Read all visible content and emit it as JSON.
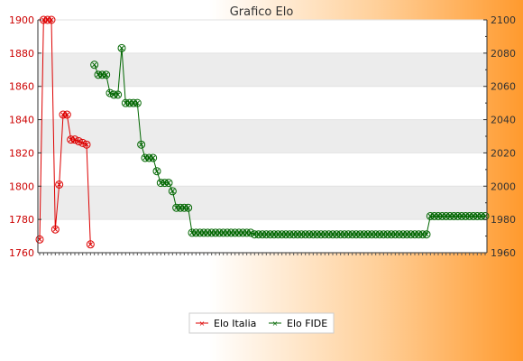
{
  "chart_data": {
    "type": "line",
    "title": "Grafico Elo",
    "y_left": {
      "min": 1760,
      "max": 1900,
      "ticks": [
        1760,
        1780,
        1800,
        1820,
        1840,
        1860,
        1880,
        1900
      ]
    },
    "y_right": {
      "min": 1960,
      "max": 2100,
      "ticks": [
        1960,
        1980,
        2000,
        2020,
        2040,
        2060,
        2080,
        2100
      ]
    },
    "x_count": 115,
    "grid": "horizontal bands",
    "legend_position": "bottom",
    "colors": {
      "italia": "#dd0000",
      "fide": "#006600",
      "band": "#ececec"
    },
    "series": [
      {
        "name": "Elo Italia",
        "axis": "left",
        "points": [
          [
            0,
            1768
          ],
          [
            1,
            1900
          ],
          [
            2,
            1900
          ],
          [
            3,
            1900
          ],
          [
            4,
            1774
          ],
          [
            5,
            1801
          ],
          [
            6,
            1843
          ],
          [
            7,
            1843
          ],
          [
            8,
            1828
          ],
          [
            9,
            1828
          ],
          [
            10,
            1827
          ],
          [
            11,
            1826
          ],
          [
            12,
            1825
          ],
          [
            13,
            1765
          ]
        ]
      },
      {
        "name": "Elo FIDE",
        "axis": "right",
        "points": [
          [
            14,
            2073
          ],
          [
            15,
            2067
          ],
          [
            16,
            2067
          ],
          [
            17,
            2067
          ],
          [
            18,
            2056
          ],
          [
            19,
            2055
          ],
          [
            20,
            2055
          ],
          [
            21,
            2083
          ],
          [
            22,
            2050
          ],
          [
            23,
            2050
          ],
          [
            24,
            2050
          ],
          [
            25,
            2050
          ],
          [
            26,
            2025
          ],
          [
            27,
            2017
          ],
          [
            28,
            2017
          ],
          [
            29,
            2017
          ],
          [
            30,
            2009
          ],
          [
            31,
            2002
          ],
          [
            32,
            2002
          ],
          [
            33,
            2002
          ],
          [
            34,
            1997
          ],
          [
            35,
            1987
          ],
          [
            36,
            1987
          ],
          [
            37,
            1987
          ],
          [
            38,
            1987
          ],
          [
            39,
            1972
          ],
          [
            40,
            1972
          ],
          [
            41,
            1972
          ],
          [
            42,
            1972
          ],
          [
            43,
            1972
          ],
          [
            44,
            1972
          ],
          [
            45,
            1972
          ],
          [
            46,
            1972
          ],
          [
            47,
            1972
          ],
          [
            48,
            1972
          ],
          [
            49,
            1972
          ],
          [
            50,
            1972
          ],
          [
            51,
            1972
          ],
          [
            52,
            1972
          ],
          [
            53,
            1972
          ],
          [
            54,
            1972
          ],
          [
            55,
            1971
          ],
          [
            56,
            1971
          ],
          [
            57,
            1971
          ],
          [
            58,
            1971
          ],
          [
            59,
            1971
          ],
          [
            60,
            1971
          ],
          [
            61,
            1971
          ],
          [
            62,
            1971
          ],
          [
            63,
            1971
          ],
          [
            64,
            1971
          ],
          [
            65,
            1971
          ],
          [
            66,
            1971
          ],
          [
            67,
            1971
          ],
          [
            68,
            1971
          ],
          [
            69,
            1971
          ],
          [
            70,
            1971
          ],
          [
            71,
            1971
          ],
          [
            72,
            1971
          ],
          [
            73,
            1971
          ],
          [
            74,
            1971
          ],
          [
            75,
            1971
          ],
          [
            76,
            1971
          ],
          [
            77,
            1971
          ],
          [
            78,
            1971
          ],
          [
            79,
            1971
          ],
          [
            80,
            1971
          ],
          [
            81,
            1971
          ],
          [
            82,
            1971
          ],
          [
            83,
            1971
          ],
          [
            84,
            1971
          ],
          [
            85,
            1971
          ],
          [
            86,
            1971
          ],
          [
            87,
            1971
          ],
          [
            88,
            1971
          ],
          [
            89,
            1971
          ],
          [
            90,
            1971
          ],
          [
            91,
            1971
          ],
          [
            92,
            1971
          ],
          [
            93,
            1971
          ],
          [
            94,
            1971
          ],
          [
            95,
            1971
          ],
          [
            96,
            1971
          ],
          [
            97,
            1971
          ],
          [
            98,
            1971
          ],
          [
            99,
            1971
          ],
          [
            100,
            1982
          ],
          [
            101,
            1982
          ],
          [
            102,
            1982
          ],
          [
            103,
            1982
          ],
          [
            104,
            1982
          ],
          [
            105,
            1982
          ],
          [
            106,
            1982
          ],
          [
            107,
            1982
          ],
          [
            108,
            1982
          ],
          [
            109,
            1982
          ],
          [
            110,
            1982
          ],
          [
            111,
            1982
          ],
          [
            112,
            1982
          ],
          [
            113,
            1982
          ],
          [
            114,
            1982
          ]
        ]
      }
    ]
  }
}
